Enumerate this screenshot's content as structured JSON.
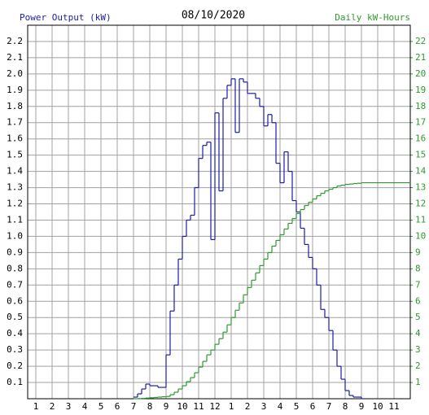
{
  "chart_data": {
    "type": "step-line",
    "title": "08/10/2020",
    "y_label": "Power Output (kW)",
    "y2_label": "Daily kW-Hours",
    "xlim": [
      0.5,
      24
    ],
    "xticks": [
      1,
      2,
      3,
      4,
      5,
      6,
      7,
      8,
      9,
      10,
      11,
      12,
      {
        "value": 13,
        "label": "1"
      },
      {
        "value": 14,
        "label": "2"
      },
      {
        "value": 15,
        "label": "3"
      },
      {
        "value": 16,
        "label": "4"
      },
      {
        "value": 17,
        "label": "5"
      },
      {
        "value": 18,
        "label": "6"
      },
      {
        "value": 19,
        "label": "7"
      },
      {
        "value": 20,
        "label": "8"
      },
      {
        "value": 21,
        "label": "9"
      },
      {
        "value": 22,
        "label": "10"
      },
      {
        "value": 23,
        "label": "11"
      }
    ],
    "ylim": [
      0,
      2.3
    ],
    "yticks": [
      0.1,
      0.2,
      0.3,
      0.4,
      0.5,
      0.6,
      0.7,
      0.8,
      0.9,
      {
        "value": 1,
        "label": "1.0"
      },
      1.1,
      1.2,
      1.3,
      1.4,
      1.5,
      1.6,
      1.7,
      1.8,
      1.9,
      {
        "value": 2,
        "label": "2.0"
      },
      2.1,
      2.2
    ],
    "y2lim": [
      0,
      23
    ],
    "y2ticks": [
      1,
      2,
      3,
      4,
      5,
      6,
      7,
      8,
      9,
      10,
      11,
      12,
      13,
      14,
      15,
      16,
      17,
      18,
      19,
      20,
      21,
      22
    ],
    "grid": true,
    "series": [
      {
        "color": "#1c1ca8",
        "axis": "y",
        "x": [
          7.0,
          7.25,
          7.5,
          7.75,
          8.0,
          8.25,
          8.5,
          8.75,
          9.0,
          9.25,
          9.5,
          9.75,
          10.0,
          10.25,
          10.5,
          10.75,
          11.0,
          11.25,
          11.5,
          11.75,
          12.0,
          12.25,
          12.5,
          12.75,
          13.0,
          13.25,
          13.5,
          13.75,
          14.0,
          14.25,
          14.5,
          14.75,
          15.0,
          15.25,
          15.5,
          15.75,
          16.0,
          16.25,
          16.5,
          16.75,
          17.0,
          17.25,
          17.5,
          17.75,
          18.0,
          18.25,
          18.5,
          18.75,
          19.0,
          19.25,
          19.5,
          19.75,
          20.0,
          20.25,
          20.5,
          20.75,
          21.0
        ],
        "values": [
          0.01,
          0.03,
          0.06,
          0.09,
          0.08,
          0.08,
          0.07,
          0.07,
          0.27,
          0.54,
          0.7,
          0.86,
          1.0,
          1.1,
          1.13,
          1.3,
          1.48,
          1.56,
          1.58,
          0.98,
          1.76,
          1.28,
          1.85,
          1.93,
          1.97,
          1.64,
          1.97,
          1.95,
          1.88,
          1.88,
          1.85,
          1.8,
          1.68,
          1.75,
          1.7,
          1.45,
          1.33,
          1.52,
          1.4,
          1.22,
          1.15,
          1.05,
          0.95,
          0.87,
          0.8,
          0.7,
          0.55,
          0.5,
          0.42,
          0.3,
          0.2,
          0.12,
          0.05,
          0.02,
          0.01,
          0.01,
          0
        ]
      },
      {
        "color": "#2e9a2e",
        "axis": "y2",
        "x": [
          7.0,
          7.25,
          7.5,
          7.75,
          8.0,
          8.25,
          8.5,
          8.75,
          9.0,
          9.25,
          9.5,
          9.75,
          10.0,
          10.25,
          10.5,
          10.75,
          11.0,
          11.25,
          11.5,
          11.75,
          12.0,
          12.25,
          12.5,
          12.75,
          13.0,
          13.25,
          13.5,
          13.75,
          14.0,
          14.25,
          14.5,
          14.75,
          15.0,
          15.25,
          15.5,
          15.75,
          16.0,
          16.25,
          16.5,
          16.75,
          17.0,
          17.25,
          17.5,
          17.75,
          18.0,
          18.25,
          18.5,
          18.75,
          19.0,
          19.25,
          19.5,
          19.75,
          20.0,
          20.25,
          20.5,
          20.75,
          21.0,
          24.0
        ],
        "values": [
          0,
          0.01,
          0.02,
          0.04,
          0.06,
          0.08,
          0.1,
          0.12,
          0.14,
          0.25,
          0.4,
          0.6,
          0.8,
          1.05,
          1.3,
          1.6,
          1.95,
          2.3,
          2.7,
          3.0,
          3.35,
          3.7,
          4.1,
          4.55,
          5.0,
          5.45,
          5.9,
          6.4,
          6.85,
          7.3,
          7.75,
          8.2,
          8.6,
          9.0,
          9.4,
          9.75,
          10.1,
          10.45,
          10.8,
          11.1,
          11.4,
          11.65,
          11.9,
          12.1,
          12.3,
          12.5,
          12.65,
          12.8,
          12.9,
          13.0,
          13.1,
          13.15,
          13.2,
          13.22,
          13.25,
          13.27,
          13.3,
          13.3
        ]
      }
    ]
  }
}
